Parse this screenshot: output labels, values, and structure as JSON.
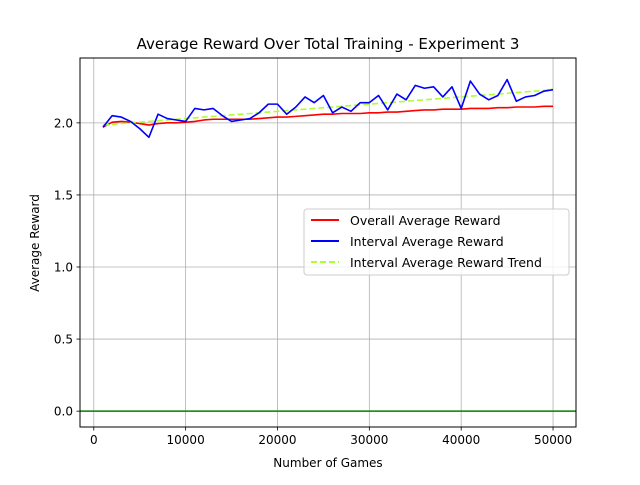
{
  "chart_data": {
    "type": "line",
    "title": "Average Reward Over Total Training - Experiment 3",
    "xlabel": "Number of Games",
    "ylabel": "Average Reward",
    "xlim": [
      -1500,
      52500
    ],
    "ylim": [
      -0.11,
      2.45
    ],
    "xticks": [
      0,
      10000,
      20000,
      30000,
      40000,
      50000
    ],
    "xtick_labels": [
      "0",
      "10000",
      "20000",
      "30000",
      "40000",
      "50000"
    ],
    "yticks": [
      0.0,
      0.5,
      1.0,
      1.5,
      2.0
    ],
    "ytick_labels": [
      "0.0",
      "0.5",
      "1.0",
      "1.5",
      "2.0"
    ],
    "grid": true,
    "legend_position": "center-right",
    "hline": {
      "y": 0.0,
      "color": "#008000"
    },
    "x": [
      1000,
      2000,
      3000,
      4000,
      5000,
      6000,
      7000,
      8000,
      9000,
      10000,
      11000,
      12000,
      13000,
      14000,
      15000,
      16000,
      17000,
      18000,
      19000,
      20000,
      21000,
      22000,
      23000,
      24000,
      25000,
      26000,
      27000,
      28000,
      29000,
      30000,
      31000,
      32000,
      33000,
      34000,
      35000,
      36000,
      37000,
      38000,
      39000,
      40000,
      41000,
      42000,
      43000,
      44000,
      45000,
      46000,
      47000,
      48000,
      49000,
      50000
    ],
    "series": [
      {
        "name": "Overall Average Reward",
        "color": "#ff0000",
        "style": "solid",
        "values": [
          1.97,
          2.005,
          2.01,
          2.005,
          1.995,
          1.985,
          1.995,
          2.0,
          2.0,
          2.005,
          2.01,
          2.02,
          2.025,
          2.025,
          2.025,
          2.025,
          2.025,
          2.03,
          2.035,
          2.04,
          2.04,
          2.045,
          2.05,
          2.055,
          2.06,
          2.06,
          2.065,
          2.065,
          2.065,
          2.07,
          2.07,
          2.075,
          2.075,
          2.08,
          2.085,
          2.09,
          2.09,
          2.095,
          2.095,
          2.095,
          2.1,
          2.1,
          2.1,
          2.105,
          2.105,
          2.11,
          2.11,
          2.11,
          2.115,
          2.115
        ]
      },
      {
        "name": "Interval Average Reward",
        "color": "#0000ff",
        "style": "solid",
        "values": [
          1.97,
          2.05,
          2.04,
          2.01,
          1.96,
          1.9,
          2.06,
          2.03,
          2.02,
          2.01,
          2.1,
          2.09,
          2.1,
          2.05,
          2.01,
          2.02,
          2.03,
          2.07,
          2.13,
          2.13,
          2.06,
          2.11,
          2.18,
          2.14,
          2.19,
          2.07,
          2.11,
          2.08,
          2.14,
          2.14,
          2.19,
          2.09,
          2.2,
          2.16,
          2.26,
          2.24,
          2.25,
          2.18,
          2.25,
          2.1,
          2.29,
          2.2,
          2.16,
          2.19,
          2.3,
          2.15,
          2.18,
          2.19,
          2.22,
          2.23
        ]
      },
      {
        "name": "Interval Average Reward Trend",
        "color": "#adff2f",
        "style": "dashed",
        "values": [
          1.985,
          1.99,
          1.995,
          2.0,
          2.005,
          2.01,
          2.015,
          2.02,
          2.025,
          2.03,
          2.035,
          2.04,
          2.045,
          2.05,
          2.055,
          2.06,
          2.065,
          2.07,
          2.075,
          2.08,
          2.085,
          2.09,
          2.095,
          2.1,
          2.105,
          2.11,
          2.115,
          2.12,
          2.125,
          2.13,
          2.135,
          2.14,
          2.145,
          2.15,
          2.155,
          2.16,
          2.165,
          2.17,
          2.175,
          2.18,
          2.185,
          2.19,
          2.195,
          2.2,
          2.205,
          2.21,
          2.215,
          2.22,
          2.225,
          2.235
        ]
      }
    ]
  }
}
